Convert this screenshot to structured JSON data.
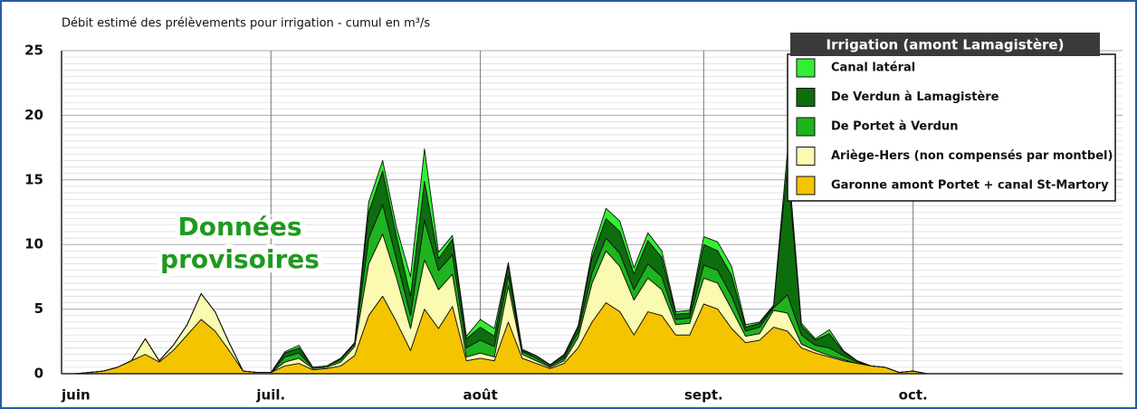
{
  "chart_data": {
    "type": "stacked-area",
    "title": "Débit estimé des prélèvements pour irrigation - cumul en m³/s",
    "annotations": [
      "Données",
      "provisoires"
    ],
    "legend_title": "Irrigation (amont Lamagistère)",
    "legend_position": "top-right",
    "grid": true,
    "ylim": [
      0,
      25
    ],
    "yticks": [
      0,
      5,
      10,
      15,
      20,
      25
    ],
    "categories": [
      "juin",
      null,
      null,
      null,
      null,
      null,
      null,
      null,
      null,
      null,
      null,
      null,
      null,
      null,
      null,
      "juil.",
      null,
      null,
      null,
      null,
      null,
      null,
      null,
      null,
      null,
      null,
      null,
      null,
      null,
      null,
      "août",
      null,
      null,
      null,
      null,
      null,
      null,
      null,
      null,
      null,
      null,
      null,
      null,
      null,
      null,
      null,
      "sept.",
      null,
      null,
      null,
      null,
      null,
      null,
      null,
      null,
      null,
      null,
      null,
      null,
      null,
      null,
      "oct.",
      null,
      null,
      null,
      null,
      null,
      null,
      null,
      null,
      null,
      null,
      null,
      null,
      null,
      null,
      null
    ],
    "series": [
      {
        "name": "Garonne amont Portet + canal St-Martory",
        "color": "#f5c400",
        "values": [
          0,
          0,
          0.1,
          0.2,
          0.5,
          1.0,
          1.5,
          0.9,
          1.8,
          3.0,
          4.2,
          3.3,
          1.8,
          0.2,
          0.1,
          0.1,
          0.6,
          0.8,
          0.3,
          0.4,
          0.6,
          1.4,
          4.5,
          6.0,
          4.0,
          1.8,
          5.0,
          3.5,
          5.2,
          1.0,
          1.2,
          1.0,
          4.0,
          1.2,
          0.8,
          0.4,
          0.8,
          2.0,
          4.0,
          5.5,
          4.8,
          3.0,
          4.8,
          4.5,
          3.0,
          3.0,
          5.4,
          5.0,
          3.5,
          2.4,
          2.6,
          3.6,
          3.3,
          2.0,
          1.6,
          1.3,
          1.0,
          0.8,
          0.6,
          0.5,
          0.1,
          0.2,
          0,
          0,
          0,
          0,
          0,
          0,
          0,
          0,
          0,
          0,
          0,
          0,
          0,
          0,
          0
        ]
      },
      {
        "name": "Ariège-Hers (non compensés par montbel)",
        "color": "#fafab0",
        "values": [
          0,
          0,
          0,
          0,
          0,
          0,
          1.2,
          0.1,
          0.4,
          0.8,
          2.0,
          1.5,
          0.6,
          0,
          0,
          0,
          0.3,
          0.4,
          0.1,
          0.1,
          0.3,
          0.7,
          4.0,
          4.8,
          3.4,
          1.7,
          3.8,
          3.0,
          2.5,
          0.3,
          0.4,
          0.3,
          2.8,
          0.3,
          0.2,
          0.1,
          0.2,
          0.8,
          3.0,
          4.0,
          3.5,
          2.7,
          2.6,
          2.0,
          0.8,
          0.9,
          2.0,
          2.0,
          1.5,
          0.5,
          0.5,
          1.3,
          1.4,
          0.3,
          0.2,
          0.1,
          0.1,
          0,
          0,
          0,
          0,
          0,
          0,
          0,
          0,
          0,
          0,
          0,
          0,
          0,
          0,
          0,
          0,
          0,
          0,
          0,
          0
        ]
      },
      {
        "name": "De Portet à Verdun",
        "color": "#1db41d",
        "values": [
          0,
          0,
          0,
          0,
          0,
          0,
          0,
          0,
          0,
          0,
          0,
          0,
          0,
          0,
          0,
          0,
          0.4,
          0.4,
          0.1,
          0.1,
          0.2,
          0.2,
          2.0,
          2.3,
          1.4,
          1.0,
          3.1,
          1.5,
          1.5,
          0.7,
          1.0,
          0.8,
          0.8,
          0.2,
          0.2,
          0.1,
          0.2,
          0.4,
          0.8,
          1.0,
          1.0,
          0.8,
          1.1,
          1.0,
          0.4,
          0.4,
          1.0,
          1.0,
          1.0,
          0.4,
          0.5,
          0.2,
          1.4,
          0.7,
          0.4,
          0.6,
          0.3,
          0.1,
          0,
          0,
          0,
          0,
          0,
          0,
          0,
          0,
          0,
          0,
          0,
          0,
          0,
          0,
          0,
          0,
          0,
          0,
          0
        ]
      },
      {
        "name": "De Verdun à Lamagistère",
        "color": "#0d6e0d",
        "values": [
          0,
          0,
          0,
          0,
          0,
          0,
          0,
          0,
          0,
          0,
          0,
          0,
          0,
          0,
          0,
          0,
          0.3,
          0.4,
          0,
          0,
          0.1,
          0.1,
          2.0,
          2.6,
          1.8,
          1.5,
          3.0,
          0.9,
          1.2,
          0.7,
          1.0,
          0.8,
          0.8,
          0.1,
          0.2,
          0.1,
          0.2,
          0.4,
          1.2,
          1.5,
          1.7,
          1.2,
          1.8,
          1.5,
          0.4,
          0.4,
          1.6,
          1.5,
          1.6,
          0.3,
          0.3,
          0.1,
          10.0,
          0.7,
          0.4,
          1.1,
          0.3,
          0.1,
          0,
          0,
          0,
          0,
          0,
          0,
          0,
          0,
          0,
          0,
          0,
          0,
          0,
          0,
          0,
          0,
          0,
          0,
          0
        ]
      },
      {
        "name": "Canal latéral",
        "color": "#33ee33",
        "values": [
          0,
          0,
          0,
          0,
          0,
          0,
          0,
          0,
          0,
          0,
          0,
          0,
          0,
          0,
          0,
          0,
          0.1,
          0.2,
          0,
          0,
          0,
          0,
          0.8,
          0.8,
          0.7,
          1.5,
          2.5,
          0.5,
          0.3,
          0.2,
          0.6,
          0.6,
          0.2,
          0.1,
          0,
          0,
          0.1,
          0.1,
          0.4,
          0.8,
          0.8,
          0.5,
          0.6,
          0.5,
          0.2,
          0.2,
          0.6,
          0.7,
          0.7,
          0.2,
          0.1,
          0.1,
          1.1,
          0.2,
          0.1,
          0.3,
          0.1,
          0,
          0,
          0,
          0,
          0,
          0,
          0,
          0,
          0,
          0,
          0,
          0,
          0,
          0,
          0,
          0,
          0,
          0,
          0,
          0
        ]
      }
    ]
  }
}
